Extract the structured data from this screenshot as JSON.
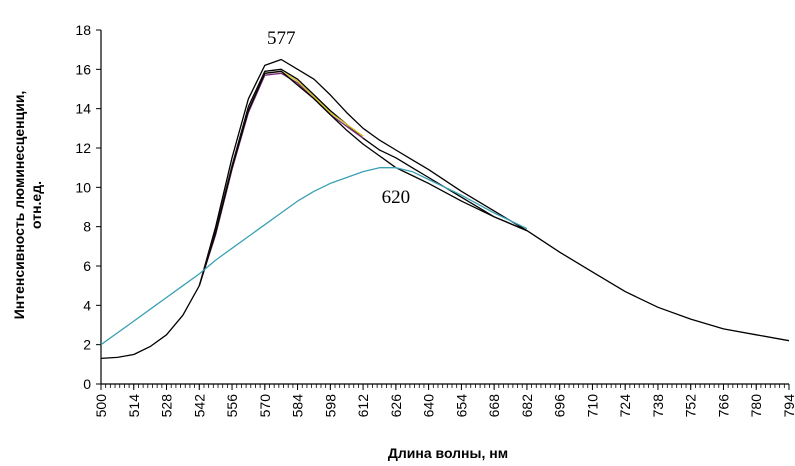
{
  "chart_data": {
    "type": "line",
    "title": "",
    "xlabel": "Длина волны, нм",
    "ylabel_line1": "Интенсивность люминесценции,",
    "ylabel_line2": "отн.ед.",
    "xlim": [
      500,
      794
    ],
    "ylim": [
      0,
      18
    ],
    "x_ticks": [
      "500",
      "514",
      "528",
      "542",
      "556",
      "570",
      "584",
      "598",
      "612",
      "626",
      "640",
      "654",
      "668",
      "682",
      "696",
      "710",
      "724",
      "738",
      "752",
      "766",
      "780",
      "794"
    ],
    "y_ticks": [
      "0",
      "2",
      "4",
      "6",
      "8",
      "10",
      "12",
      "14",
      "16",
      "18"
    ],
    "grid": false,
    "legend": "none",
    "annotations": [
      {
        "text": "577",
        "x": 577,
        "y": 17.3
      },
      {
        "text": "620",
        "x": 626,
        "y": 9.2
      }
    ],
    "series": [
      {
        "color": "#000000",
        "x": [
          500,
          507,
          514,
          521,
          528,
          535,
          542,
          549,
          556,
          563,
          570,
          577,
          584,
          591,
          598,
          605,
          612,
          619,
          626,
          633,
          640,
          654,
          668,
          682,
          696,
          710,
          724,
          738,
          752,
          766,
          780,
          794
        ],
        "y": [
          1.3,
          1.35,
          1.5,
          1.9,
          2.5,
          3.5,
          5.0,
          8.0,
          11.5,
          14.5,
          16.2,
          16.5,
          16.0,
          15.5,
          14.7,
          13.8,
          13.0,
          12.4,
          11.9,
          11.4,
          10.9,
          9.8,
          8.8,
          7.8,
          6.7,
          5.7,
          4.7,
          3.9,
          3.3,
          2.8,
          2.5,
          2.2
        ]
      },
      {
        "color": "#000000",
        "x": [
          542,
          549,
          556,
          563,
          570,
          577,
          584,
          591,
          598,
          605,
          612,
          619,
          626,
          633,
          640,
          654,
          668,
          682
        ],
        "y": [
          5.0,
          7.8,
          11.1,
          14.1,
          15.9,
          16.0,
          15.5,
          14.7,
          13.9,
          13.2,
          12.5,
          11.9,
          11.5,
          11.0,
          10.5,
          9.5,
          8.5,
          7.8
        ]
      },
      {
        "color": "#d4c21a",
        "x": [
          542,
          549,
          556,
          563,
          570,
          577,
          584,
          591,
          598,
          605,
          612
        ],
        "y": [
          5.0,
          7.7,
          11.0,
          13.9,
          15.8,
          15.9,
          15.4,
          14.6,
          13.8,
          13.2,
          12.6
        ]
      },
      {
        "color": "#7a2a7a",
        "x": [
          542,
          549,
          556,
          563,
          570,
          577,
          584,
          591,
          598,
          605,
          612
        ],
        "y": [
          5.0,
          7.6,
          10.9,
          13.8,
          15.7,
          15.8,
          15.3,
          14.5,
          13.7,
          13.1,
          12.5
        ]
      },
      {
        "color": "#000000",
        "x": [
          542,
          549,
          556,
          563,
          570,
          577,
          584,
          591,
          598,
          605,
          612,
          619,
          626,
          633,
          640,
          654,
          668,
          682
        ],
        "y": [
          5.0,
          7.7,
          11.0,
          13.9,
          15.8,
          15.9,
          15.2,
          14.5,
          13.7,
          12.9,
          12.2,
          11.6,
          11.0,
          10.6,
          10.2,
          9.3,
          8.5,
          7.8
        ]
      },
      {
        "color": "#3aa0b4",
        "x": [
          500,
          507,
          514,
          521,
          528,
          535,
          542,
          549,
          556,
          563,
          570,
          577,
          584,
          591,
          598,
          605,
          612,
          619,
          626,
          633,
          640,
          654,
          668,
          682
        ],
        "y": [
          2.0,
          2.6,
          3.2,
          3.8,
          4.4,
          5.0,
          5.6,
          6.3,
          6.9,
          7.5,
          8.1,
          8.7,
          9.3,
          9.8,
          10.2,
          10.5,
          10.8,
          11.0,
          11.0,
          10.8,
          10.4,
          9.6,
          8.7,
          7.9
        ]
      }
    ]
  }
}
